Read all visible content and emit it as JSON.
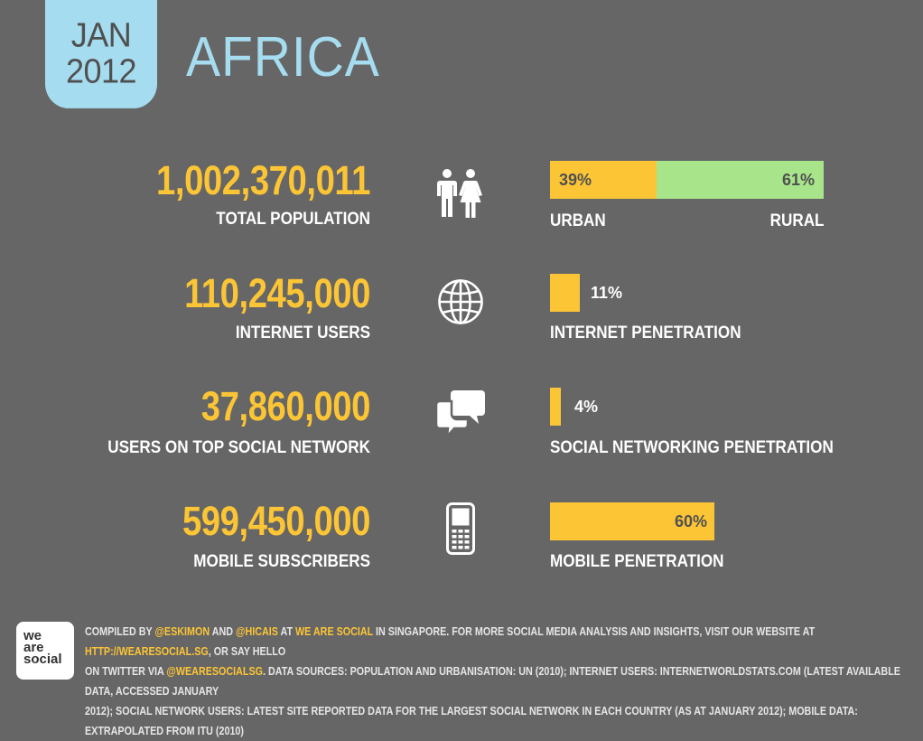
{
  "header": {
    "month": "JAN",
    "year": "2012",
    "region": "AFRICA"
  },
  "colors": {
    "accent_yellow": "#fcc535",
    "light_blue": "#a6dcef",
    "rural_green": "#a8e58a",
    "background": "#666666"
  },
  "stats": [
    {
      "value": "1,002,370,011",
      "label": "TOTAL POPULATION",
      "icon": "people-icon",
      "bar": {
        "urban_pct": 39,
        "urban_label": "39%",
        "rural_pct": 61,
        "rural_label": "61%",
        "urban_caption": "URBAN",
        "rural_caption": "RURAL"
      }
    },
    {
      "value": "110,245,000",
      "label": "INTERNET USERS",
      "icon": "globe-icon",
      "bar": {
        "pct": 11,
        "pct_label": "11%",
        "caption": "INTERNET PENETRATION"
      }
    },
    {
      "value": "37,860,000",
      "label": "USERS ON TOP SOCIAL NETWORK",
      "icon": "speech-bubbles-icon",
      "bar": {
        "pct": 4,
        "pct_label": "4%",
        "caption": "SOCIAL NETWORKING PENETRATION"
      }
    },
    {
      "value": "599,450,000",
      "label": "MOBILE SUBSCRIBERS",
      "icon": "mobile-phone-icon",
      "bar": {
        "pct": 60,
        "pct_label": "60%",
        "caption": "MOBILE PENETRATION"
      }
    }
  ],
  "footer": {
    "logo_lines": [
      "we",
      "are",
      "social"
    ],
    "t1": "COMPILED BY ",
    "handle1": "@ESKIMON",
    "t2": " AND ",
    "handle2": "@HICAIS",
    "t3": " AT ",
    "org": "WE ARE SOCIAL",
    "t4": " IN SINGAPORE. FOR MORE SOCIAL MEDIA ANALYSIS AND INSIGHTS, VISIT OUR WEBSITE AT ",
    "url": "HTTP://WEARESOCIAL.SG",
    "t5": ", OR SAY HELLO",
    "t6": "ON TWITTER VIA ",
    "handle3": "@WEARESOCIALSG",
    "t7": ". DATA SOURCES: POPULATION AND URBANISATION: UN (2010); INTERNET USERS: INTERNETWORLDSTATS.COM (LATEST AVAILABLE DATA, ACCESSED JANUARY",
    "t8": "2012); SOCIAL NETWORK USERS: LATEST SITE REPORTED DATA FOR THE LARGEST SOCIAL NETWORK IN EACH COUNTRY (AS AT JANUARY 2012); MOBILE DATA: EXTRAPOLATED FROM ITU (2010)"
  }
}
